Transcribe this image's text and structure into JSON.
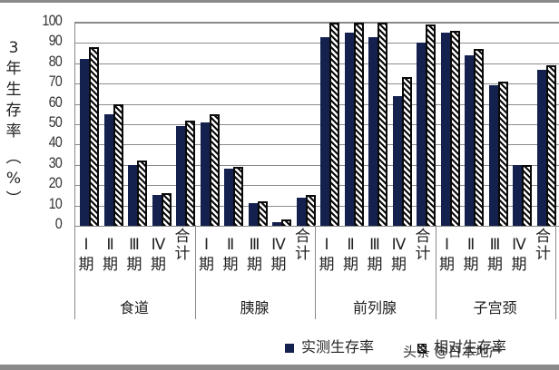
{
  "chart_data": {
    "type": "bar",
    "title": "",
    "ylabel": "3年生存率（%）",
    "xlabel": "",
    "ylim": [
      0,
      100
    ],
    "yticks": [
      0,
      10,
      20,
      30,
      40,
      50,
      60,
      70,
      80,
      90,
      100
    ],
    "grid": true,
    "legend_position": "bottom",
    "groups": [
      "食道",
      "胰腺",
      "前列腺",
      "子宫颈"
    ],
    "categories": [
      "Ⅰ期",
      "Ⅱ期",
      "Ⅲ期",
      "Ⅳ期",
      "合计"
    ],
    "series": [
      {
        "name": "实测生存率",
        "color": "#14214f",
        "pattern": "solid",
        "values": {
          "食道": [
            82,
            55,
            30,
            15,
            49
          ],
          "胰腺": [
            51,
            28,
            11,
            2,
            14
          ],
          "前列腺": [
            93,
            95,
            93,
            64,
            90
          ],
          "子宫颈": [
            95,
            84,
            69,
            30,
            77
          ]
        }
      },
      {
        "name": "相对生存率",
        "color": "#0a0a0a",
        "pattern": "diagonal-hatch",
        "values": {
          "食道": [
            88,
            60,
            32,
            16,
            52
          ],
          "胰腺": [
            55,
            29,
            12,
            3,
            15
          ],
          "前列腺": [
            100,
            100,
            100,
            73,
            99
          ],
          "子宫颈": [
            96,
            87,
            71,
            30,
            79
          ]
        }
      }
    ]
  },
  "y_axis": {
    "label_chars": [
      "3",
      "年",
      "生",
      "存",
      "率",
      "︵",
      "%",
      "︶"
    ],
    "ticks": [
      "100",
      "90",
      "80",
      "70",
      "60",
      "50",
      "40",
      "30",
      "20",
      "10",
      "0"
    ]
  },
  "x_axis": {
    "category_labels": [
      {
        "roman": "Ⅰ",
        "suffix": "期"
      },
      {
        "roman": "Ⅱ",
        "suffix": "期"
      },
      {
        "roman": "Ⅲ",
        "suffix": "期"
      },
      {
        "roman": "Ⅳ",
        "suffix": "期"
      },
      {
        "roman": "合",
        "suffix": "计"
      }
    ],
    "group_labels": [
      "食道",
      "胰腺",
      "前列腺",
      "子宫颈"
    ]
  },
  "legend": {
    "items": [
      "实测生存率",
      "相对生存率"
    ]
  },
  "watermark": "头条 @日本地产"
}
